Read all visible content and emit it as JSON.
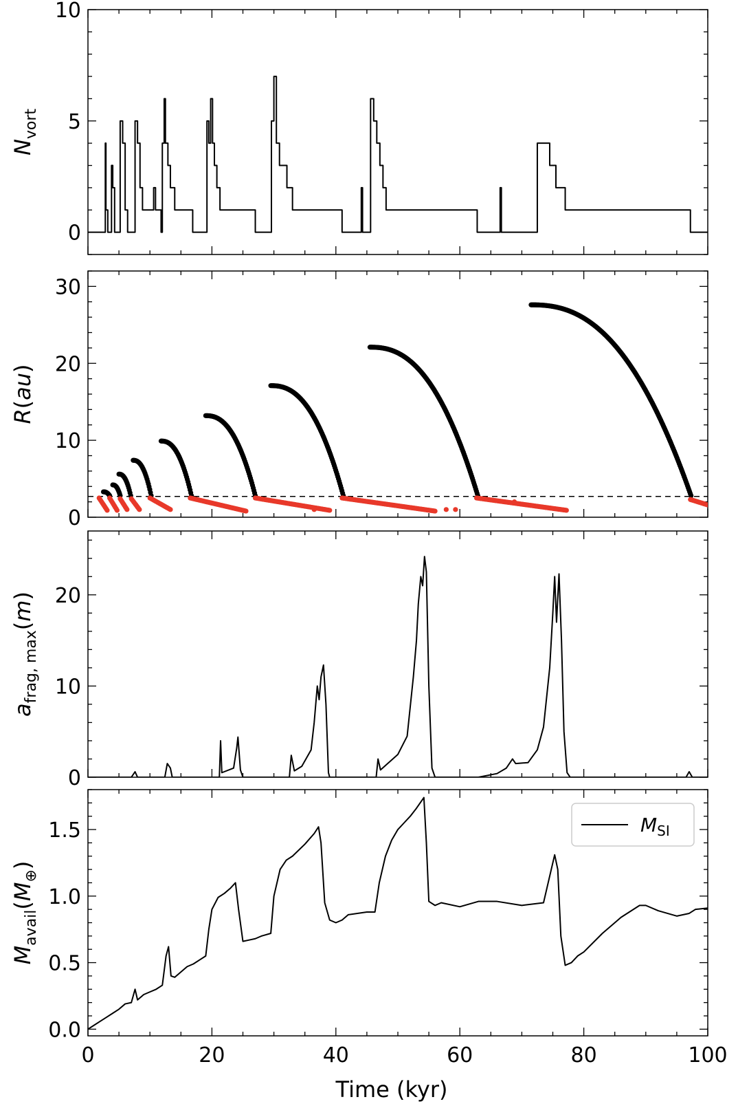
{
  "figure": {
    "xlabel": "Time (kyr)",
    "xlim": [
      0,
      100
    ],
    "xticks": [
      "0",
      "20",
      "40",
      "60",
      "80",
      "100"
    ]
  },
  "chart_data": [
    {
      "type": "line",
      "ylabel": {
        "main": "N",
        "sub": "vort"
      },
      "ylim": [
        -1,
        10
      ],
      "yticks": [
        "0",
        "5",
        "10"
      ],
      "series": [
        {
          "color": "#000000",
          "step": true,
          "points": [
            [
              0,
              0
            ],
            [
              2.7,
              0
            ],
            [
              2.8,
              4
            ],
            [
              2.9,
              1
            ],
            [
              3.2,
              0
            ],
            [
              3.6,
              0
            ],
            [
              3.8,
              3
            ],
            [
              4.0,
              2
            ],
            [
              4.3,
              0
            ],
            [
              4.8,
              0
            ],
            [
              5.2,
              5
            ],
            [
              5.6,
              4
            ],
            [
              6.0,
              1
            ],
            [
              6.4,
              0
            ],
            [
              7.2,
              0
            ],
            [
              7.6,
              5
            ],
            [
              8.0,
              4
            ],
            [
              8.4,
              2
            ],
            [
              8.8,
              1
            ],
            [
              10.4,
              1
            ],
            [
              10.6,
              2
            ],
            [
              10.9,
              1
            ],
            [
              11.8,
              0
            ],
            [
              12.0,
              4
            ],
            [
              12.3,
              6
            ],
            [
              12.5,
              4
            ],
            [
              12.9,
              3
            ],
            [
              13.3,
              2
            ],
            [
              14.0,
              1
            ],
            [
              16.9,
              0
            ],
            [
              18.8,
              0
            ],
            [
              19.2,
              5
            ],
            [
              19.5,
              4
            ],
            [
              19.8,
              6
            ],
            [
              20.1,
              4
            ],
            [
              20.4,
              3
            ],
            [
              20.8,
              2
            ],
            [
              21.3,
              1
            ],
            [
              27.0,
              0
            ],
            [
              29.0,
              0
            ],
            [
              29.6,
              5
            ],
            [
              30.0,
              7
            ],
            [
              30.4,
              4
            ],
            [
              30.9,
              3
            ],
            [
              32.1,
              2
            ],
            [
              33.0,
              1
            ],
            [
              41.0,
              0
            ],
            [
              44.0,
              0
            ],
            [
              44.1,
              2
            ],
            [
              44.3,
              0
            ],
            [
              45.3,
              0
            ],
            [
              45.6,
              6
            ],
            [
              46.1,
              5
            ],
            [
              46.6,
              4
            ],
            [
              47.1,
              3
            ],
            [
              47.6,
              2
            ],
            [
              48.1,
              1
            ],
            [
              62.8,
              0
            ],
            [
              66.3,
              0
            ],
            [
              66.5,
              2
            ],
            [
              66.7,
              0
            ],
            [
              71.8,
              0
            ],
            [
              72.5,
              4
            ],
            [
              74.5,
              3
            ],
            [
              75.5,
              2
            ],
            [
              77.0,
              1
            ],
            [
              97.2,
              0
            ],
            [
              100,
              0
            ]
          ]
        }
      ]
    },
    {
      "type": "scatter",
      "ylabel": {
        "main": "R",
        "rest": "(au)"
      },
      "ylim": [
        0,
        32
      ],
      "yticks": [
        "0",
        "10",
        "20",
        "30"
      ],
      "hline": {
        "y": 2.7,
        "style": "dashed",
        "color": "#000000"
      },
      "series": [
        {
          "color": "#000000",
          "arcs": [
            {
              "t0": 2.5,
              "t1": 3.5,
              "r0": 3.3,
              "r1": 2.8
            },
            {
              "t0": 4.0,
              "t1": 5.2,
              "r0": 4.2,
              "r1": 2.8
            },
            {
              "t0": 5.0,
              "t1": 6.9,
              "r0": 5.6,
              "r1": 2.8
            },
            {
              "t0": 7.3,
              "t1": 10.2,
              "r0": 7.4,
              "r1": 2.8
            },
            {
              "t0": 11.8,
              "t1": 16.7,
              "r0": 9.9,
              "r1": 2.8
            },
            {
              "t0": 19.0,
              "t1": 27.0,
              "r0": 13.2,
              "r1": 2.8
            },
            {
              "t0": 29.5,
              "t1": 41.2,
              "r0": 17.1,
              "r1": 2.8
            },
            {
              "t0": 45.5,
              "t1": 62.9,
              "r0": 22.1,
              "r1": 2.8
            },
            {
              "t0": 71.5,
              "t1": 97.3,
              "r0": 27.6,
              "r1": 2.8
            }
          ]
        },
        {
          "color": "#e8392a",
          "segments": [
            {
              "t0": 1.8,
              "t1": 3.1,
              "r0": 2.5,
              "r1": 0.9
            },
            {
              "t0": 3.5,
              "t1": 4.7,
              "r0": 2.5,
              "r1": 0.9
            },
            {
              "t0": 5.2,
              "t1": 6.3,
              "r0": 2.4,
              "r1": 1.0
            },
            {
              "t0": 7.0,
              "t1": 8.3,
              "r0": 2.4,
              "r1": 1.0
            },
            {
              "t0": 10.0,
              "t1": 13.3,
              "r0": 2.5,
              "r1": 1.0
            },
            {
              "t0": 16.5,
              "t1": 25.5,
              "r0": 2.5,
              "r1": 0.8
            },
            {
              "t0": 27.0,
              "t1": 39.0,
              "r0": 2.5,
              "r1": 0.9
            },
            {
              "t0": 41.0,
              "t1": 56.0,
              "r0": 2.5,
              "r1": 0.8
            },
            {
              "t0": 62.7,
              "t1": 77.2,
              "r0": 2.5,
              "r1": 0.9
            },
            {
              "t0": 97.2,
              "t1": 100,
              "r0": 2.3,
              "r1": 1.6
            }
          ],
          "stray": [
            [
              57.8,
              1.0
            ],
            [
              59.3,
              1.0
            ],
            [
              36.5,
              1.0
            ],
            [
              68.8,
              2.0
            ]
          ]
        }
      ]
    },
    {
      "type": "line",
      "ylabel": {
        "main": "a",
        "sub": "frag, max",
        "rest": "(m)"
      },
      "ylim": [
        0,
        27
      ],
      "yticks": [
        "0",
        "10",
        "20"
      ],
      "series": [
        {
          "color": "#000000",
          "points": [
            [
              0,
              0
            ],
            [
              7,
              0
            ],
            [
              7.6,
              0.6
            ],
            [
              8.0,
              0
            ],
            [
              12.4,
              0
            ],
            [
              12.8,
              1.5
            ],
            [
              13.3,
              1.0
            ],
            [
              13.6,
              0
            ],
            [
              21.2,
              0
            ],
            [
              21.4,
              4.0
            ],
            [
              21.6,
              0.5
            ],
            [
              23.5,
              1.0
            ],
            [
              24.0,
              3.2
            ],
            [
              24.2,
              4.4
            ],
            [
              24.6,
              0.8
            ],
            [
              25.0,
              0
            ],
            [
              32.5,
              0
            ],
            [
              32.8,
              2.4
            ],
            [
              33.3,
              0.7
            ],
            [
              34.5,
              1.2
            ],
            [
              36.0,
              3.0
            ],
            [
              36.5,
              6.0
            ],
            [
              37.0,
              10.0
            ],
            [
              37.3,
              8.5
            ],
            [
              37.6,
              11.0
            ],
            [
              38.0,
              12.3
            ],
            [
              38.4,
              8.0
            ],
            [
              38.8,
              0.5
            ],
            [
              39.0,
              0
            ],
            [
              46.5,
              0
            ],
            [
              46.8,
              2.0
            ],
            [
              47.2,
              0.8
            ],
            [
              50.0,
              2.5
            ],
            [
              51.5,
              4.5
            ],
            [
              52.5,
              11.0
            ],
            [
              53.0,
              15.0
            ],
            [
              53.3,
              19.0
            ],
            [
              53.7,
              22.0
            ],
            [
              54.0,
              21.0
            ],
            [
              54.3,
              24.2
            ],
            [
              54.6,
              22.5
            ],
            [
              55.0,
              10.0
            ],
            [
              55.5,
              1.0
            ],
            [
              56.0,
              0
            ],
            [
              63.0,
              0
            ],
            [
              66.0,
              0.4
            ],
            [
              67.5,
              1.0
            ],
            [
              68.5,
              2.0
            ],
            [
              69.0,
              1.5
            ],
            [
              71.0,
              1.6
            ],
            [
              72.5,
              3.0
            ],
            [
              73.5,
              5.5
            ],
            [
              74.5,
              12.0
            ],
            [
              75.0,
              18.0
            ],
            [
              75.3,
              22.0
            ],
            [
              75.6,
              17.0
            ],
            [
              76.0,
              22.3
            ],
            [
              76.4,
              15.0
            ],
            [
              76.8,
              5.0
            ],
            [
              77.3,
              0.5
            ],
            [
              77.8,
              0
            ],
            [
              96.5,
              0
            ],
            [
              97.0,
              0.6
            ],
            [
              97.5,
              0
            ],
            [
              100,
              0
            ]
          ]
        }
      ]
    },
    {
      "type": "line",
      "ylabel": {
        "main": "M",
        "sub": "avail",
        "rest": "(M",
        "sub2": "⊕",
        "close": ")"
      },
      "ylim": [
        -0.05,
        1.8
      ],
      "yticks": [
        "0.0",
        "0.5",
        "1.0",
        "1.5"
      ],
      "legend": {
        "entries": [
          "M_SI"
        ],
        "main": "M",
        "sub": "SI",
        "position": "upper right"
      },
      "series": [
        {
          "name": "M_SI",
          "color": "#000000",
          "points": [
            [
              0,
              0.0
            ],
            [
              1,
              0.03
            ],
            [
              2,
              0.06
            ],
            [
              3,
              0.09
            ],
            [
              4,
              0.12
            ],
            [
              5,
              0.15
            ],
            [
              6,
              0.19
            ],
            [
              7.0,
              0.2
            ],
            [
              7.6,
              0.3
            ],
            [
              8.0,
              0.22
            ],
            [
              9.0,
              0.26
            ],
            [
              10,
              0.28
            ],
            [
              11,
              0.3
            ],
            [
              12,
              0.33
            ],
            [
              12.6,
              0.55
            ],
            [
              13.0,
              0.62
            ],
            [
              13.4,
              0.4
            ],
            [
              14,
              0.39
            ],
            [
              15,
              0.43
            ],
            [
              16,
              0.47
            ],
            [
              17,
              0.49
            ],
            [
              18,
              0.52
            ],
            [
              19.0,
              0.55
            ],
            [
              19.5,
              0.75
            ],
            [
              20,
              0.9
            ],
            [
              21,
              0.99
            ],
            [
              22,
              1.02
            ],
            [
              23,
              1.06
            ],
            [
              23.8,
              1.1
            ],
            [
              24.3,
              0.9
            ],
            [
              25.0,
              0.66
            ],
            [
              26,
              0.67
            ],
            [
              27.0,
              0.68
            ],
            [
              28,
              0.7
            ],
            [
              29.5,
              0.72
            ],
            [
              30,
              1.0
            ],
            [
              31,
              1.2
            ],
            [
              32,
              1.27
            ],
            [
              33,
              1.3
            ],
            [
              35,
              1.39
            ],
            [
              36.5,
              1.47
            ],
            [
              37.2,
              1.52
            ],
            [
              37.6,
              1.4
            ],
            [
              38.2,
              0.95
            ],
            [
              39,
              0.82
            ],
            [
              40,
              0.8
            ],
            [
              41.0,
              0.82
            ],
            [
              42,
              0.86
            ],
            [
              45,
              0.88
            ],
            [
              46.3,
              0.88
            ],
            [
              47,
              1.1
            ],
            [
              48,
              1.3
            ],
            [
              49,
              1.42
            ],
            [
              50,
              1.5
            ],
            [
              51,
              1.55
            ],
            [
              52,
              1.6
            ],
            [
              53,
              1.66
            ],
            [
              54.2,
              1.74
            ],
            [
              54.6,
              1.4
            ],
            [
              55.0,
              0.96
            ],
            [
              56,
              0.93
            ],
            [
              57,
              0.95
            ],
            [
              60,
              0.92
            ],
            [
              63,
              0.96
            ],
            [
              66,
              0.96
            ],
            [
              70,
              0.93
            ],
            [
              73.5,
              0.95
            ],
            [
              74.5,
              1.15
            ],
            [
              75.3,
              1.31
            ],
            [
              75.8,
              1.2
            ],
            [
              76.3,
              0.7
            ],
            [
              77.0,
              0.48
            ],
            [
              78.0,
              0.5
            ],
            [
              79.0,
              0.55
            ],
            [
              80,
              0.58
            ],
            [
              83,
              0.72
            ],
            [
              86,
              0.84
            ],
            [
              89,
              0.93
            ],
            [
              90,
              0.93
            ],
            [
              92,
              0.89
            ],
            [
              95,
              0.85
            ],
            [
              97,
              0.87
            ],
            [
              98,
              0.9
            ],
            [
              100,
              0.91
            ]
          ]
        }
      ]
    }
  ]
}
